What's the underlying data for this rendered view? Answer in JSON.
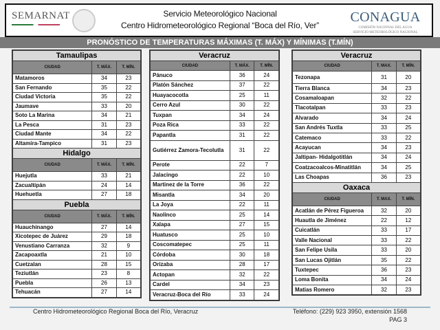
{
  "header": {
    "logo_left": "SEMARNAT",
    "title1": "Servicio Meteorológico Nacional",
    "title2": "Centro Hidrometeorológico Regional “Boca del Río, Ver”",
    "logo_right": "CONAGUA",
    "logo_right_sub1": "COMISIÓN NACIONAL DEL AGUA",
    "logo_right_sub2": "SERVICIO METEOROLÓGICO NACIONAL"
  },
  "banner": "PRONÓSTICO DE TEMPERATURAS MÁXIMAS (T. MÁX) Y MÍNIMAS (T.MÍN)",
  "columns": [
    [
      {
        "state": "Tamaulipas",
        "headers": [
          "CIUDAD",
          "T. MÁX.",
          "T. MÍN."
        ],
        "rows": [
          [
            "Matamoros",
            "34",
            "23"
          ],
          [
            "San Fernando",
            "35",
            "22"
          ],
          [
            "Ciudad Victoria",
            "35",
            "22"
          ],
          [
            "Jaumave",
            "33",
            "20"
          ],
          [
            "Soto La Marina",
            "34",
            "21"
          ],
          [
            "La Pesca",
            "31",
            "23"
          ],
          [
            "Ciudad Mante",
            "34",
            "22"
          ],
          [
            "Altamira-Tampico",
            "31",
            "23"
          ]
        ]
      },
      {
        "state": "Hidalgo",
        "headers": [
          "CIUDAD",
          "T. MÁX.",
          "T. MÍN."
        ],
        "rows": [
          [
            "Huejutla",
            "33",
            "21"
          ],
          [
            "Zacualtipán",
            "24",
            "14"
          ],
          [
            "Huehuetla",
            "27",
            "18"
          ]
        ]
      },
      {
        "state": "Puebla",
        "headers": [
          "CIUDAD",
          "T. MÁX.",
          "T. MÍN."
        ],
        "rows": [
          [
            "Huauchinango",
            "27",
            "14"
          ],
          [
            "Xicotepec de Juárez",
            "29",
            "18"
          ],
          [
            "Venustiano Carranza",
            "32",
            "9"
          ],
          [
            "Zacapoaxtla",
            "21",
            "10"
          ],
          [
            "Cuetzalan",
            "28",
            "15"
          ],
          [
            "Teziutlán",
            "23",
            "8"
          ],
          [
            "Puebla",
            "26",
            "13"
          ],
          [
            "Tehuacán",
            "27",
            "14"
          ]
        ]
      }
    ],
    [
      {
        "state": "Veracruz",
        "headers": [
          "CIUDAD",
          "T. MÁX.",
          "T. MÍN."
        ],
        "rows": [
          [
            "Pánuco",
            "36",
            "24"
          ],
          [
            "Platón Sánchez",
            "37",
            "22"
          ],
          [
            "Huayacocotla",
            "25",
            "11"
          ],
          [
            "Cerro Azul",
            "30",
            "22"
          ],
          [
            "Tuxpan",
            "34",
            "24"
          ],
          [
            "Poza Rica",
            "33",
            "22"
          ],
          [
            "Papantla",
            "31",
            "22"
          ],
          [
            "Gutiérrez Zamora-Tecolutla",
            "31",
            "22"
          ],
          [
            "Perote",
            "22",
            "7"
          ],
          [
            "Jalacingo",
            "22",
            "10"
          ],
          [
            "Martinez de la Torre",
            "36",
            "22"
          ],
          [
            "Misantla",
            "34",
            "20"
          ],
          [
            "La Joya",
            "22",
            "11"
          ],
          [
            "Naolinco",
            "25",
            "14"
          ],
          [
            "Xalapa",
            "27",
            "15"
          ],
          [
            "Huatusco",
            "25",
            "10"
          ],
          [
            "Coscomatepec",
            "25",
            "11"
          ],
          [
            "Córdoba",
            "30",
            "18"
          ],
          [
            "Orizaba",
            "28",
            "17"
          ],
          [
            "Actopan",
            "32",
            "22"
          ],
          [
            "Cardel",
            "34",
            "23"
          ],
          [
            "Veracruz-Boca del Río",
            "33",
            "24"
          ]
        ]
      }
    ],
    [
      {
        "state": "Veracruz",
        "headers": [
          "CIUDAD",
          "T. MAX.",
          "T. MÍN."
        ],
        "rows": [
          [
            "Tezonapa",
            "31",
            "20"
          ],
          [
            "Tierra Blanca",
            "34",
            "23"
          ],
          [
            "Cosamaloapan",
            "32",
            "22"
          ],
          [
            "Tlacotalpan",
            "33",
            "23"
          ],
          [
            "Alvarado",
            "34",
            "24"
          ],
          [
            "San Andrés Tuxtla",
            "33",
            "25"
          ],
          [
            "Catemaco",
            "33",
            "22"
          ],
          [
            "Acayucan",
            "34",
            "23"
          ],
          [
            "Jaltipan- Hidalgotitlán",
            "34",
            "24"
          ],
          [
            "Coatzacoalcos-Minatitlán",
            "34",
            "25"
          ],
          [
            "Las Choapas",
            "36",
            "23"
          ]
        ]
      },
      {
        "state": "Oaxaca",
        "headers": [
          "CIUDAD",
          "T. MAX.",
          "T. MÍN."
        ],
        "rows": [
          [
            "Acatlán de Pérez Figueroa",
            "32",
            "20"
          ],
          [
            "Huautla de Jiménez",
            "22",
            "12"
          ],
          [
            "Cuicatlán",
            "33",
            "17"
          ],
          [
            "Valle Nacional",
            "33",
            "22"
          ],
          [
            "San Felipe Usila",
            "33",
            "20"
          ],
          [
            "San Lucas Ojitlán",
            "35",
            "22"
          ],
          [
            "Tuxtepec",
            "36",
            "23"
          ],
          [
            "Loma Bonita",
            "34",
            "24"
          ],
          [
            "Matias Romero",
            "32",
            "23"
          ]
        ]
      }
    ]
  ],
  "footer": {
    "left": "Centro Hidrometeorológico Regional Boca del Río, Veracruz",
    "phone": "Teléfono: (229) 923 3950, extensión 1568",
    "page": "PAG 3"
  }
}
